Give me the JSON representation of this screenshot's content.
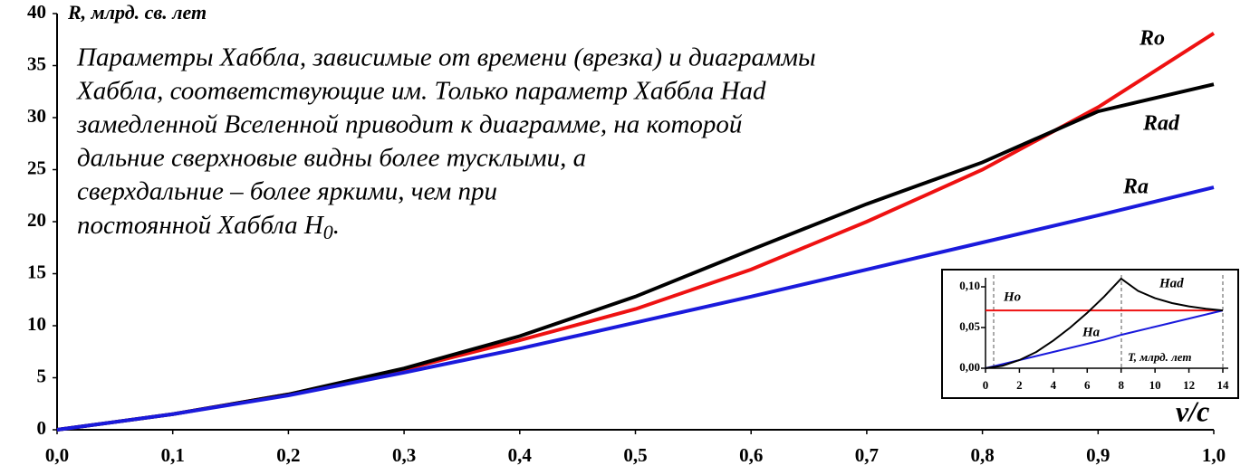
{
  "chart_data": [
    {
      "type": "line",
      "y_label": "R, млрд. св. лет",
      "x_label": "v/c",
      "annotation": {
        "lines": [
          "Параметры Хаббла, зависимые от времени (врезка) и диаграммы",
          "Хаббла, соответствующие им. Только параметр Хаббла Had",
          "замедленной Вселенной приводит к диаграмме, на которой",
          "дальние сверхновые видны более тусклыми, а",
          "сверхдальние – более яркими, чем при"
        ],
        "last_line": [
          "постоянной Хаббла H",
          "0",
          "."
        ]
      },
      "x": [
        0,
        0.1,
        0.2,
        0.3,
        0.4,
        0.5,
        0.6,
        0.7,
        0.8,
        0.9,
        1.0
      ],
      "series": [
        {
          "name": "Ro",
          "color": "#ee1111",
          "values": [
            0,
            1.5,
            3.4,
            5.8,
            8.6,
            11.6,
            15.4,
            20.0,
            25.0,
            31.0,
            38.1
          ]
        },
        {
          "name": "Rad",
          "color": "#000000",
          "values": [
            0,
            1.5,
            3.4,
            5.9,
            9.0,
            12.8,
            17.3,
            21.7,
            25.7,
            30.6,
            33.2
          ]
        },
        {
          "name": "Ra",
          "color": "#1a1adc",
          "values": [
            0,
            1.5,
            3.3,
            5.5,
            7.8,
            10.3,
            12.8,
            15.4,
            18.0,
            20.6,
            23.3
          ]
        }
      ],
      "xlim": [
        0,
        1.0
      ],
      "xticks": [
        {
          "value": 0,
          "label": "0,0"
        },
        {
          "value": 0.1,
          "label": "0,1"
        },
        {
          "value": 0.2,
          "label": "0,2"
        },
        {
          "value": 0.3,
          "label": "0,3"
        },
        {
          "value": 0.4,
          "label": "0,4"
        },
        {
          "value": 0.5,
          "label": "0,5"
        },
        {
          "value": 0.6,
          "label": "0,6"
        },
        {
          "value": 0.7,
          "label": "0,7"
        },
        {
          "value": 0.8,
          "label": "0,8"
        },
        {
          "value": 0.9,
          "label": "0,9"
        },
        {
          "value": 1.0,
          "label": "1,0"
        }
      ],
      "ylim": [
        0,
        40
      ],
      "yticks": [
        0,
        5,
        10,
        15,
        20,
        25,
        30,
        35,
        40
      ]
    },
    {
      "type": "line",
      "x_label": "T, млрд. лет",
      "x": [
        0,
        1,
        2,
        3,
        4,
        5,
        6,
        7,
        8,
        9,
        10,
        11,
        12,
        13,
        14
      ],
      "series": [
        {
          "name": "Ho",
          "color": "#ee1111",
          "values": [
            0.071,
            0.071,
            0.071,
            0.071,
            0.071,
            0.071,
            0.071,
            0.071,
            0.071,
            0.071,
            0.071,
            0.071,
            0.071,
            0.071,
            0.071
          ]
        },
        {
          "name": "Ha",
          "color": "#1a1adc",
          "values": [
            0,
            0.005,
            0.01,
            0.015,
            0.02,
            0.025,
            0.03,
            0.035,
            0.041,
            0.046,
            0.051,
            0.056,
            0.061,
            0.066,
            0.071
          ]
        },
        {
          "name": "Had",
          "color": "#000000",
          "values": [
            0,
            0.003,
            0.01,
            0.02,
            0.034,
            0.05,
            0.068,
            0.088,
            0.11,
            0.095,
            0.086,
            0.08,
            0.076,
            0.073,
            0.071
          ]
        }
      ],
      "xlim": [
        0,
        14
      ],
      "xticks": [
        0,
        2,
        4,
        6,
        8,
        10,
        12,
        14
      ],
      "ylim": [
        0,
        0.1
      ],
      "yticks": [
        {
          "value": 0,
          "label": "0,00"
        },
        {
          "value": 0.05,
          "label": "0,05"
        },
        {
          "value": 0.1,
          "label": "0,10"
        }
      ]
    }
  ]
}
